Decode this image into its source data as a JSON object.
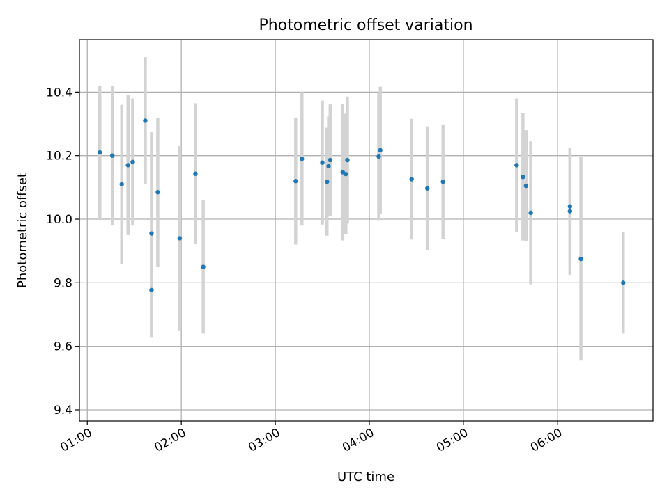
{
  "chart_data": {
    "type": "scatter",
    "title": "Photometric offset variation",
    "xlabel": "UTC time",
    "ylabel": "Photometric offset",
    "x_axis": "time",
    "xlim": [
      "00:55",
      "07:01"
    ],
    "ylim": [
      9.365,
      10.565
    ],
    "xticks": [
      "01:00",
      "02:00",
      "03:00",
      "04:00",
      "05:00",
      "06:00"
    ],
    "yticks": [
      9.4,
      9.6,
      9.8,
      10.0,
      10.2,
      10.4
    ],
    "ytick_labels": [
      "9.4",
      "9.6",
      "9.8",
      "10.0",
      "10.2",
      "10.4"
    ],
    "grid": true,
    "legend": "none",
    "colors": {
      "marker": "#1f77b4",
      "errorbar": "#d3d3d3",
      "grid": "#b0b0b0",
      "axes": "#000000"
    },
    "points": [
      {
        "x": "01:08",
        "y": 10.21,
        "err": 0.21
      },
      {
        "x": "01:16",
        "y": 10.2,
        "err": 0.22
      },
      {
        "x": "01:22",
        "y": 10.11,
        "err": 0.25
      },
      {
        "x": "01:26",
        "y": 10.17,
        "err": 0.22
      },
      {
        "x": "01:29",
        "y": 10.18,
        "err": 0.2
      },
      {
        "x": "01:37",
        "y": 10.31,
        "err": 0.2
      },
      {
        "x": "01:41",
        "y": 9.955,
        "err": 0.32
      },
      {
        "x": "01:41",
        "y": 9.777,
        "err": 0.15
      },
      {
        "x": "01:45",
        "y": 10.085,
        "err": 0.235
      },
      {
        "x": "01:59",
        "y": 9.94,
        "err": 0.29
      },
      {
        "x": "02:09",
        "y": 10.143,
        "err": 0.222
      },
      {
        "x": "02:14",
        "y": 9.85,
        "err": 0.21
      },
      {
        "x": "03:13",
        "y": 10.12,
        "err": 0.2
      },
      {
        "x": "03:17",
        "y": 10.19,
        "err": 0.21
      },
      {
        "x": "03:30",
        "y": 10.178,
        "err": 0.195
      },
      {
        "x": "03:33",
        "y": 10.118,
        "err": 0.17
      },
      {
        "x": "03:34",
        "y": 10.167,
        "err": 0.156
      },
      {
        "x": "03:35",
        "y": 10.186,
        "err": 0.175
      },
      {
        "x": "03:43",
        "y": 10.148,
        "err": 0.215
      },
      {
        "x": "03:45",
        "y": 10.142,
        "err": 0.19
      },
      {
        "x": "03:46",
        "y": 10.186,
        "err": 0.2
      },
      {
        "x": "04:06",
        "y": 10.197,
        "err": 0.2
      },
      {
        "x": "04:07",
        "y": 10.217,
        "err": 0.2
      },
      {
        "x": "04:27",
        "y": 10.126,
        "err": 0.19
      },
      {
        "x": "04:37",
        "y": 10.097,
        "err": 0.195
      },
      {
        "x": "04:47",
        "y": 10.118,
        "err": 0.18
      },
      {
        "x": "05:34",
        "y": 10.17,
        "err": 0.21
      },
      {
        "x": "05:38",
        "y": 10.133,
        "err": 0.2
      },
      {
        "x": "05:40",
        "y": 10.105,
        "err": 0.175
      },
      {
        "x": "05:43",
        "y": 10.02,
        "err": 0.225
      },
      {
        "x": "06:08",
        "y": 10.04,
        "err": 0.18
      },
      {
        "x": "06:08",
        "y": 10.025,
        "err": 0.2
      },
      {
        "x": "06:15",
        "y": 9.875,
        "err": 0.32
      },
      {
        "x": "06:42",
        "y": 9.8,
        "err": 0.16
      }
    ]
  }
}
